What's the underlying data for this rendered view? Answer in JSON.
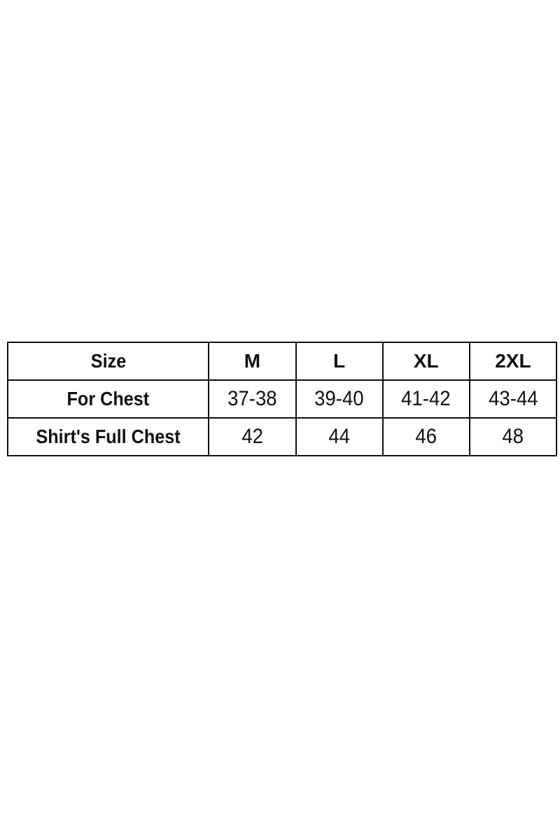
{
  "size_chart": {
    "header": {
      "label": "Size",
      "sizes": [
        "M",
        "L",
        "XL",
        "2XL"
      ]
    },
    "rows": [
      {
        "label": "For Chest",
        "values": [
          "37-38",
          "39-40",
          "41-42",
          "43-44"
        ]
      },
      {
        "label": "Shirt's Full Chest",
        "values": [
          "42",
          "44",
          "46",
          "48"
        ]
      }
    ]
  }
}
